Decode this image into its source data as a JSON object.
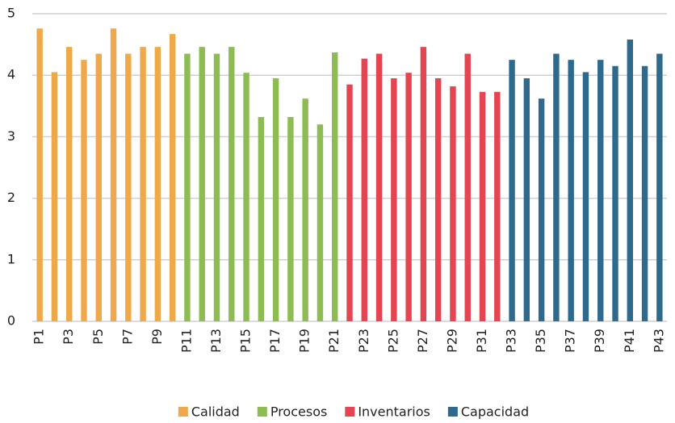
{
  "chart_data": {
    "type": "bar",
    "categories": [
      "P1",
      null,
      "P3",
      null,
      "P5",
      null,
      "P7",
      null,
      "P9",
      null,
      "P11",
      null,
      "P13",
      null,
      "P15",
      null,
      "P17",
      null,
      "P19",
      null,
      "P21",
      null,
      "P23",
      null,
      "P25",
      null,
      "P27",
      null,
      "P29",
      null,
      "P31",
      null,
      "P33",
      null,
      "P35",
      null,
      "P37",
      null,
      "P39",
      null,
      "P41",
      null,
      "P43"
    ],
    "series": [
      {
        "name": "Calidad",
        "color": "#f0a94a",
        "values": [
          4.76,
          4.05,
          4.46,
          4.25,
          4.35,
          4.76,
          4.35,
          4.46,
          4.46,
          4.67,
          null,
          null,
          null,
          null,
          null,
          null,
          null,
          null,
          null,
          null,
          null,
          null,
          null,
          null,
          null,
          null,
          null,
          null,
          null,
          null,
          null,
          null,
          null,
          null,
          null,
          null,
          null,
          null,
          null,
          null,
          null,
          null,
          null
        ]
      },
      {
        "name": "Procesos",
        "color": "#8cbc52",
        "values": [
          null,
          null,
          null,
          null,
          null,
          null,
          null,
          null,
          null,
          null,
          4.35,
          4.46,
          4.35,
          4.46,
          4.04,
          3.32,
          3.95,
          3.32,
          3.62,
          3.2,
          4.37,
          null,
          null,
          null,
          null,
          null,
          null,
          null,
          null,
          null,
          null,
          null,
          null,
          null,
          null,
          null,
          null,
          null,
          null,
          null,
          null,
          null,
          null
        ]
      },
      {
        "name": "Inventarios",
        "color": "#e54451",
        "values": [
          null,
          null,
          null,
          null,
          null,
          null,
          null,
          null,
          null,
          null,
          null,
          null,
          null,
          null,
          null,
          null,
          null,
          null,
          null,
          null,
          null,
          3.85,
          4.27,
          4.35,
          3.95,
          4.04,
          4.46,
          3.95,
          3.82,
          4.35,
          3.73,
          3.73,
          null,
          null,
          null,
          null,
          null,
          null,
          null,
          null,
          null,
          null,
          null
        ]
      },
      {
        "name": "Capacidad",
        "color": "#2e6a8e",
        "values": [
          null,
          null,
          null,
          null,
          null,
          null,
          null,
          null,
          null,
          null,
          null,
          null,
          null,
          null,
          null,
          null,
          null,
          null,
          null,
          null,
          null,
          null,
          null,
          null,
          null,
          null,
          null,
          null,
          null,
          null,
          null,
          null,
          4.25,
          3.95,
          3.62,
          4.35,
          4.25,
          4.05,
          4.25,
          4.15,
          4.58,
          4.15,
          4.35
        ]
      }
    ],
    "ylim": [
      0,
      5
    ],
    "yticks": [
      0,
      1,
      2,
      3,
      4,
      5
    ],
    "grid": true
  }
}
